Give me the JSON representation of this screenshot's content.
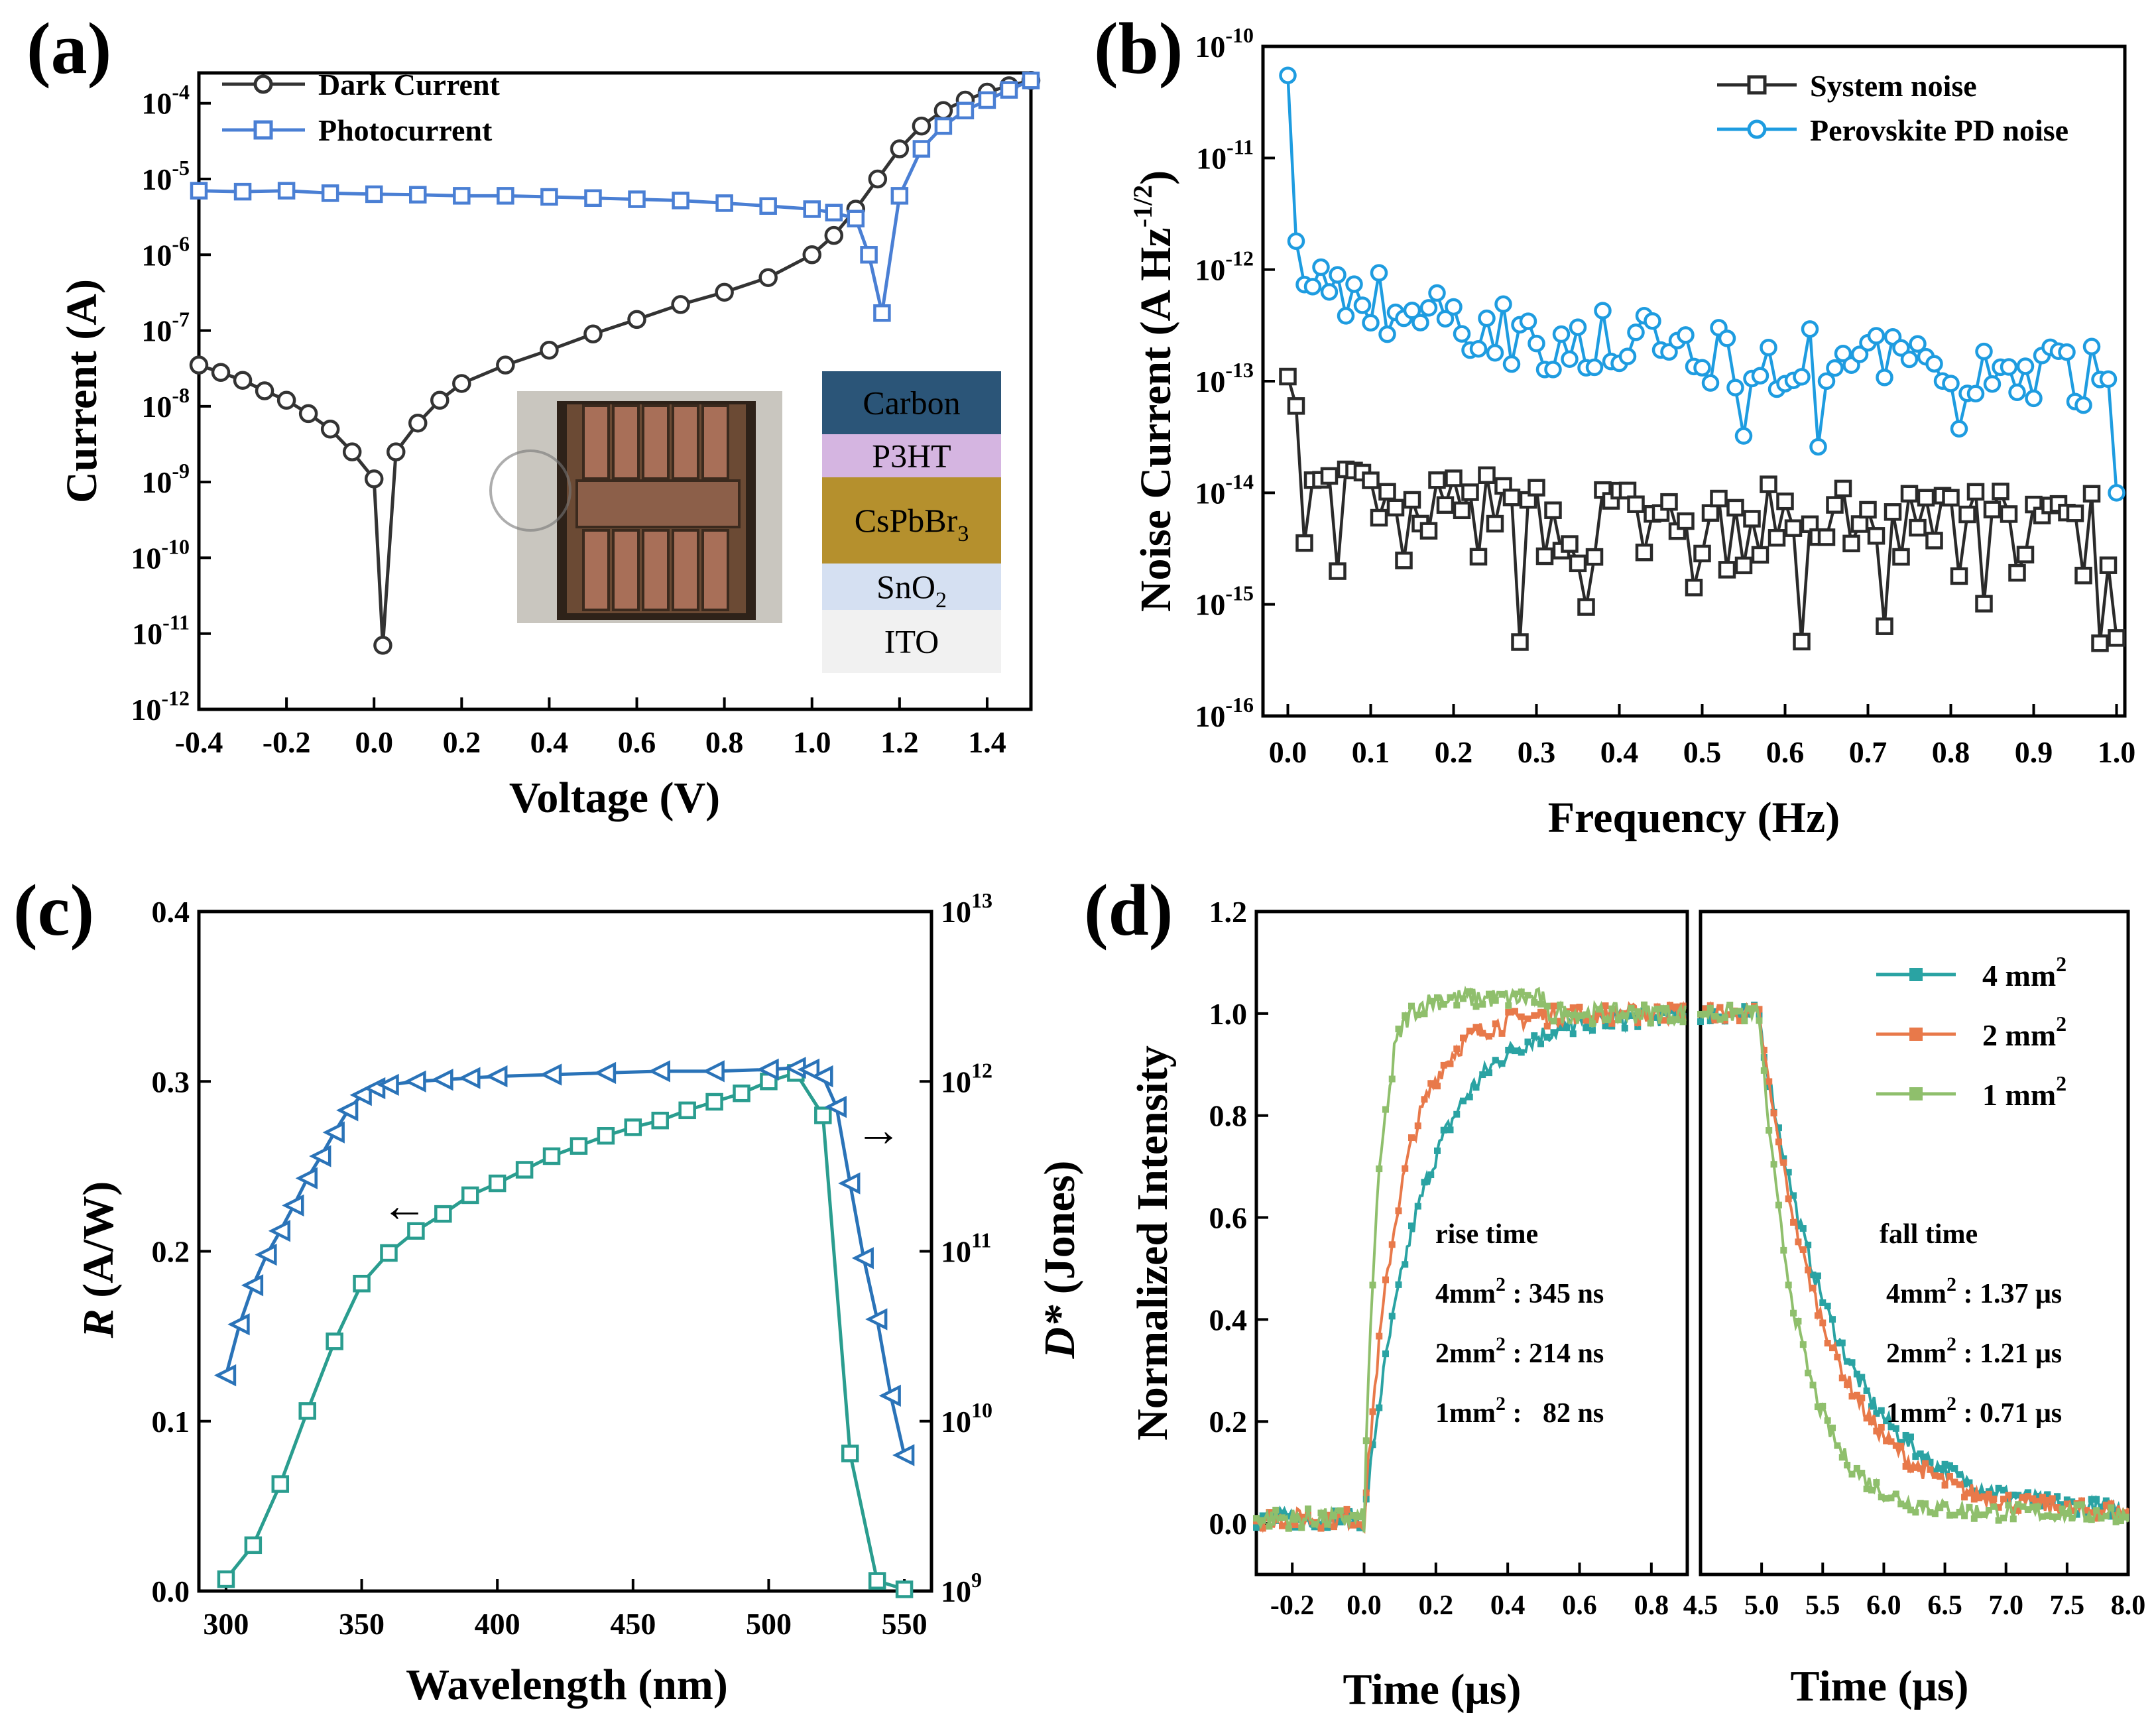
{
  "figure": {
    "panels": [
      "(a)",
      "(b)",
      "(c)",
      "(d)"
    ]
  },
  "colors": {
    "dark": "#333333",
    "photo": "#4a7fd4",
    "system_noise": "#2a2a2a",
    "pd_noise": "#1e9ce0",
    "resp": "#2a9d8f",
    "detect": "#2a73b8",
    "c4": "#2aa3a3",
    "c2": "#e8794a",
    "c1": "#8fbf6c"
  },
  "chart_data": [
    {
      "panel": "(a)",
      "type": "line",
      "title": "",
      "xlabel": "Voltage (V)",
      "ylabel": "Current (A)",
      "yscale": "log",
      "xlim": [
        -0.4,
        1.5
      ],
      "ylim_exp": [
        -12,
        -3.6
      ],
      "x_ticks": [
        "-0.4",
        "-0.2",
        "0.0",
        "0.2",
        "0.4",
        "0.6",
        "0.8",
        "1.0",
        "1.2",
        "1.4"
      ],
      "y_ticks": [
        {
          "base": "10",
          "exp": "-12"
        },
        {
          "base": "10",
          "exp": "-11"
        },
        {
          "base": "10",
          "exp": "-10"
        },
        {
          "base": "10",
          "exp": "-9"
        },
        {
          "base": "10",
          "exp": "-8"
        },
        {
          "base": "10",
          "exp": "-7"
        },
        {
          "base": "10",
          "exp": "-6"
        },
        {
          "base": "10",
          "exp": "-5"
        },
        {
          "base": "10",
          "exp": "-4"
        }
      ],
      "series": [
        {
          "name": "Dark Current",
          "marker": "circle",
          "x": [
            -0.4,
            -0.35,
            -0.3,
            -0.25,
            -0.2,
            -0.15,
            -0.1,
            -0.05,
            0.0,
            0.02,
            0.05,
            0.1,
            0.15,
            0.2,
            0.3,
            0.4,
            0.5,
            0.6,
            0.7,
            0.8,
            0.9,
            1.0,
            1.05,
            1.1,
            1.15,
            1.2,
            1.25,
            1.3,
            1.35,
            1.4,
            1.45,
            1.5
          ],
          "y": [
            3.5e-08,
            2.8e-08,
            2.2e-08,
            1.6e-08,
            1.2e-08,
            8e-09,
            5e-09,
            2.5e-09,
            1.1e-09,
            7e-12,
            2.5e-09,
            6e-09,
            1.2e-08,
            2e-08,
            3.5e-08,
            5.5e-08,
            9e-08,
            1.4e-07,
            2.2e-07,
            3.2e-07,
            5e-07,
            1e-06,
            1.8e-06,
            4e-06,
            1e-05,
            2.5e-05,
            5e-05,
            8e-05,
            0.00011,
            0.00014,
            0.00017,
            0.0002
          ]
        },
        {
          "name": "Photocurrent",
          "marker": "square",
          "x": [
            -0.4,
            -0.3,
            -0.2,
            -0.1,
            0.0,
            0.1,
            0.2,
            0.3,
            0.4,
            0.5,
            0.6,
            0.7,
            0.8,
            0.9,
            1.0,
            1.05,
            1.1,
            1.13,
            1.16,
            1.2,
            1.25,
            1.3,
            1.35,
            1.4,
            1.45,
            1.5
          ],
          "y": [
            7e-06,
            6.8e-06,
            7e-06,
            6.5e-06,
            6.3e-06,
            6.2e-06,
            6e-06,
            6e-06,
            5.8e-06,
            5.6e-06,
            5.4e-06,
            5.2e-06,
            4.8e-06,
            4.4e-06,
            4e-06,
            3.6e-06,
            3e-06,
            1e-06,
            1.7e-07,
            6e-06,
            2.5e-05,
            5e-05,
            8e-05,
            0.00011,
            0.00015,
            0.0002
          ]
        }
      ],
      "inset_layers": [
        {
          "label": "Carbon",
          "color": "#2b5578"
        },
        {
          "label": "P3HT",
          "color": "#d5b5e1"
        },
        {
          "label": "CsPbBr",
          "sub": "3",
          "color": "#b5902d"
        },
        {
          "label": "SnO",
          "sub": "2",
          "color": "#d5e0f2"
        },
        {
          "label": "ITO",
          "color": "#f1f1f1"
        }
      ]
    },
    {
      "panel": "(b)",
      "type": "line",
      "xlabel": "Frequency (Hz)",
      "ylabel": "Noise Current (A Hz",
      "ylabel_sup": "-1/2",
      "ylabel_close": ")",
      "yscale": "log",
      "xlim": [
        -0.03,
        1.01
      ],
      "ylim_exp": [
        -16,
        -10
      ],
      "x_ticks": [
        "0.0",
        "0.1",
        "0.2",
        "0.3",
        "0.4",
        "0.5",
        "0.6",
        "0.7",
        "0.8",
        "0.9",
        "1.0"
      ],
      "y_ticks": [
        {
          "base": "10",
          "exp": "-16"
        },
        {
          "base": "10",
          "exp": "-15"
        },
        {
          "base": "10",
          "exp": "-14"
        },
        {
          "base": "10",
          "exp": "-13"
        },
        {
          "base": "10",
          "exp": "-12"
        },
        {
          "base": "10",
          "exp": "-11"
        },
        {
          "base": "10",
          "exp": "-10"
        }
      ],
      "series": [
        {
          "name": "System noise",
          "marker": "square",
          "generator": "noise_low"
        },
        {
          "name": "Perovskite PD noise",
          "marker": "circle",
          "generator": "noise_high"
        }
      ]
    },
    {
      "panel": "(c)",
      "type": "line",
      "xlabel": "Wavelength (nm)",
      "ylabel_left": "R (A/W)",
      "ylabel_left_italic": "R",
      "ylabel_left_rest": " (A/W)",
      "ylabel_right_italic": "D*",
      "ylabel_right_rest": " (Jones)",
      "xlim": [
        290,
        560
      ],
      "ylim_left": [
        0,
        0.4
      ],
      "ylim_right_exp": [
        9,
        13
      ],
      "x_ticks": [
        "300",
        "350",
        "400",
        "450",
        "500",
        "550"
      ],
      "y_ticks_left": [
        "0.0",
        "0.1",
        "0.2",
        "0.3",
        "0.4"
      ],
      "y_ticks_right": [
        {
          "base": "10",
          "exp": "9"
        },
        {
          "base": "10",
          "exp": "10"
        },
        {
          "base": "10",
          "exp": "11"
        },
        {
          "base": "10",
          "exp": "12"
        },
        {
          "base": "10",
          "exp": "13"
        }
      ],
      "series": [
        {
          "name": "R",
          "axis": "left",
          "marker": "square",
          "x": [
            300,
            310,
            320,
            330,
            340,
            350,
            360,
            370,
            380,
            390,
            400,
            410,
            420,
            430,
            440,
            450,
            460,
            470,
            480,
            490,
            500,
            510,
            520,
            530,
            540,
            550
          ],
          "y": [
            0.007,
            0.027,
            0.063,
            0.106,
            0.147,
            0.181,
            0.199,
            0.212,
            0.222,
            0.233,
            0.24,
            0.248,
            0.256,
            0.262,
            0.268,
            0.273,
            0.277,
            0.283,
            0.288,
            0.293,
            0.3,
            0.305,
            0.28,
            0.081,
            0.006,
            0.001
          ]
        },
        {
          "name": "D*",
          "axis": "right",
          "marker": "triangle-left",
          "x": [
            300,
            305,
            310,
            315,
            320,
            325,
            330,
            335,
            340,
            345,
            350,
            355,
            360,
            370,
            380,
            390,
            400,
            420,
            440,
            460,
            480,
            500,
            510,
            515,
            520,
            525,
            530,
            535,
            540,
            545,
            550
          ],
          "y_exp": [
            10.27,
            10.57,
            10.8,
            10.98,
            11.12,
            11.27,
            11.43,
            11.56,
            11.7,
            11.83,
            11.92,
            11.96,
            11.98,
            12.0,
            12.01,
            12.02,
            12.03,
            12.04,
            12.05,
            12.06,
            12.06,
            12.07,
            12.08,
            12.07,
            12.03,
            11.85,
            11.4,
            10.96,
            10.6,
            10.15,
            9.8
          ]
        }
      ],
      "arrows": {
        "left": "←",
        "right": "→"
      }
    },
    {
      "panel": "(d)",
      "type": "line",
      "ylabel": "Normalized Intensity",
      "left": {
        "xlabel": "Time (μs)",
        "xlim": [
          -0.3,
          0.9
        ],
        "x_ticks": [
          "-0.2",
          "0.0",
          "0.2",
          "0.4",
          "0.6",
          "0.8"
        ],
        "annotation_title": "rise time",
        "annotations": [
          {
            "prefix": "4mm",
            "sup": "2",
            "value": " : 345 ns"
          },
          {
            "prefix": "2mm",
            "sup": "2",
            "value": " : 214 ns"
          },
          {
            "prefix": "1mm",
            "sup": "2",
            "value": " :   82 ns"
          }
        ]
      },
      "right": {
        "xlabel": "Time (μs)",
        "xlim": [
          4.5,
          8.0
        ],
        "x_ticks": [
          "4.5",
          "5.0",
          "5.5",
          "6.0",
          "6.5",
          "7.0",
          "7.5",
          "8.0"
        ],
        "annotation_title": "fall time",
        "annotations": [
          {
            "prefix": "4mm",
            "sup": "2",
            "value": " : 1.37 μs"
          },
          {
            "prefix": "2mm",
            "sup": "2",
            "value": " : 1.21 μs"
          },
          {
            "prefix": "1mm",
            "sup": "2",
            "value": " : 0.71 μs"
          }
        ]
      },
      "ylim": [
        -0.1,
        1.2
      ],
      "y_ticks": [
        "0.0",
        "0.2",
        "0.4",
        "0.6",
        "0.8",
        "1.0",
        "1.2"
      ],
      "series": [
        {
          "name": "4 mm",
          "sup": "2",
          "rise_ns": 345,
          "fall_us": 1.37,
          "color_key": "c4"
        },
        {
          "name": "2 mm",
          "sup": "2",
          "rise_ns": 214,
          "fall_us": 1.21,
          "color_key": "c2"
        },
        {
          "name": "1 mm",
          "sup": "2",
          "rise_ns": 82,
          "fall_us": 0.71,
          "color_key": "c1"
        }
      ]
    }
  ]
}
